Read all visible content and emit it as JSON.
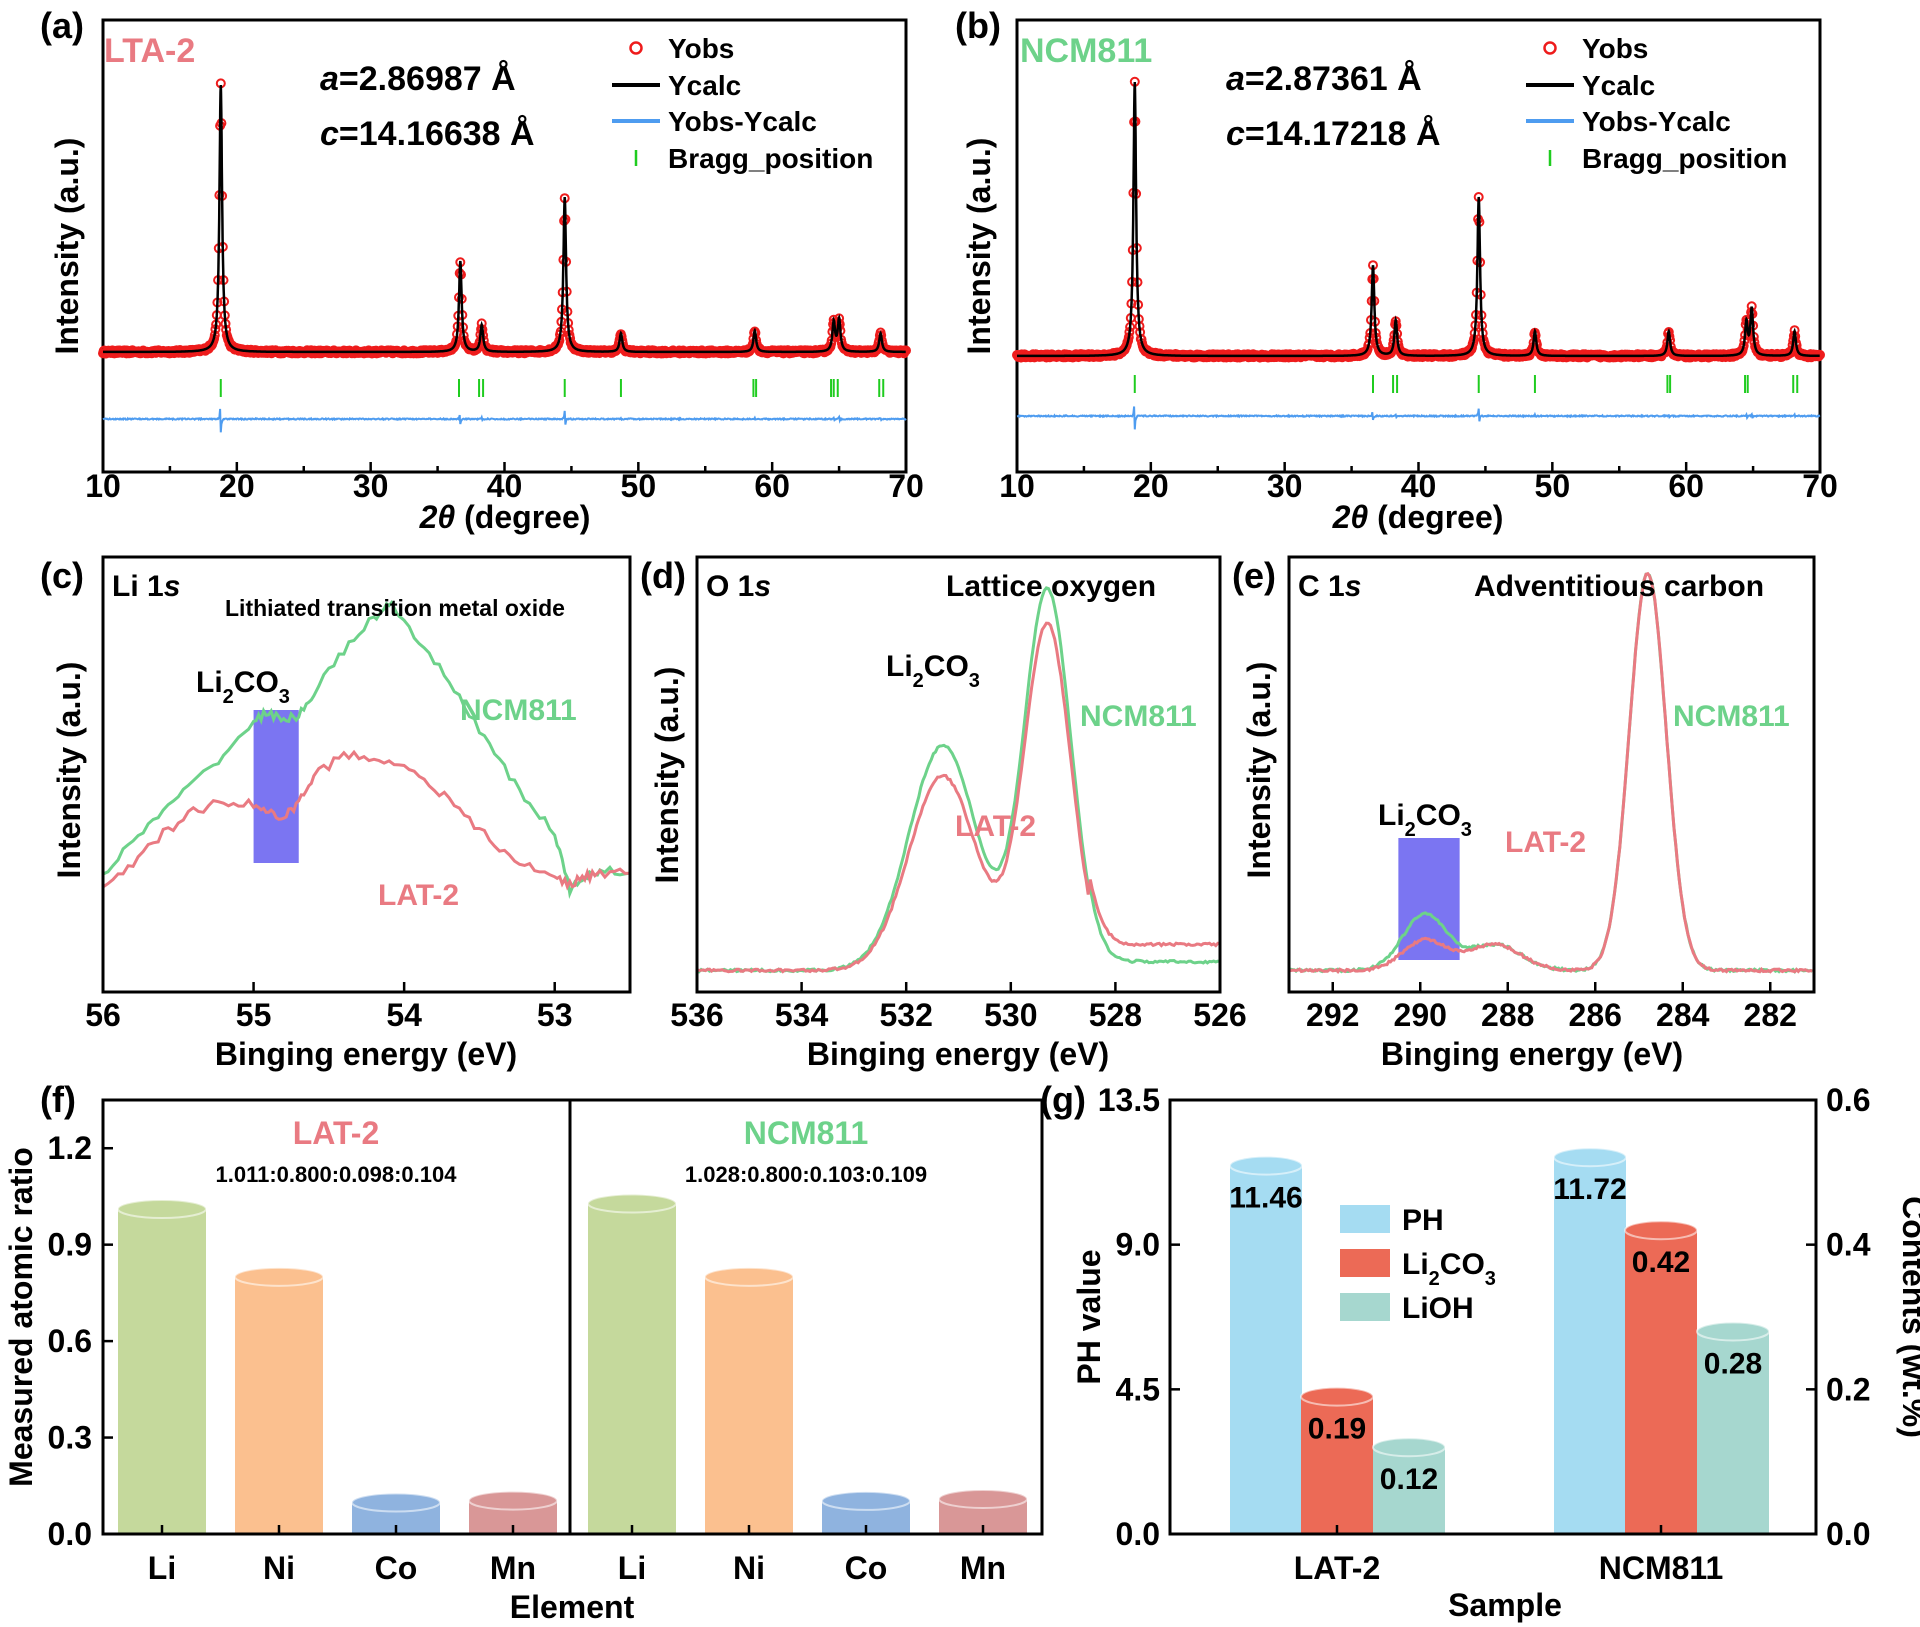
{
  "colors": {
    "yobs": "#ee1c1c",
    "ycalc": "#000000",
    "diff": "#4e9cf0",
    "bragg": "#1fcc1f",
    "ncm": "#6dd28a",
    "lat": "#e97a82",
    "li2co3_band": "#7b75f2",
    "Li": "#c5d99c",
    "Ni": "#fbc08f",
    "Co": "#8fb3df",
    "Mn": "#d99797",
    "PH": "#a5dcf2",
    "Li2CO3": "#ec6a56",
    "LiOH": "#a6d7cf"
  },
  "panels": {
    "a": {
      "label": "(a)",
      "sample": "LTA-2",
      "lattice_a_var": "a",
      "lattice_a_val": "=2.86987 Å",
      "lattice_c_var": "c",
      "lattice_c_val": "=14.16638 Å",
      "legend": [
        "Yobs",
        "Ycalc",
        "Yobs-Ycalc",
        "Bragg_position"
      ],
      "ylabel": "Intensity (a.u.)",
      "xlabel_italic": "2θ",
      "xlabel_rest": " (degree)"
    },
    "b": {
      "label": "(b)",
      "sample": "NCM811",
      "lattice_a_var": "a",
      "lattice_a_val": "=2.87361 Å",
      "lattice_c_var": "c",
      "lattice_c_val": "=14.17218 Å",
      "legend": [
        "Yobs",
        "Ycalc",
        "Yobs-Ycalc",
        "Bragg_position"
      ],
      "ylabel": "Intensity (a.u.)",
      "xlabel_italic": "2θ",
      "xlabel_rest": " (degree)"
    },
    "c": {
      "label": "(c)",
      "title_main": "Li 1",
      "title_italic": "s",
      "note": "Lithiated transition metal oxide",
      "band_label": "Li2CO3",
      "series_labels": [
        "NCM811",
        "LAT-2"
      ],
      "ylabel": "Intensity (a.u.)",
      "xlabel": "Binging energy (eV)"
    },
    "d": {
      "label": "(d)",
      "title_main": "O 1",
      "title_italic": "s",
      "note": "Lattice oxygen",
      "peak_label": "Li2CO3",
      "series_labels": [
        "NCM811",
        "LAT-2"
      ],
      "ylabel": "Intensity (a.u.)",
      "xlabel": "Binging energy (eV)"
    },
    "e": {
      "label": "(e)",
      "title_main": "C 1",
      "title_italic": "s",
      "note": "Adventitious carbon",
      "band_label": "Li2CO3",
      "series_labels": [
        "NCM811",
        "LAT-2"
      ],
      "ylabel": "Intensity (a.u.)",
      "xlabel": "Binging energy (eV)"
    },
    "f": {
      "label": "(f)",
      "ylabel": "Measured atomic ratio",
      "xlabel": "Element",
      "groups": [
        {
          "name": "LAT-2",
          "ratio_text": "1.011:0.800:0.098:0.104"
        },
        {
          "name": "NCM811",
          "ratio_text": "1.028:0.800:0.103:0.109"
        }
      ]
    },
    "g": {
      "label": "(g)",
      "ylabel_left": "PH value",
      "ylabel_right": "Contents (wt.%)",
      "xlabel": "Sample",
      "legend": [
        "PH",
        "Li2CO3",
        "LiOH"
      ]
    }
  },
  "chart_data": [
    {
      "type": "line",
      "panel": "a",
      "xlim": [
        10,
        70
      ],
      "xticks": [
        10,
        20,
        30,
        40,
        50,
        60,
        70
      ],
      "peaks": [
        {
          "x": 18.8,
          "height": 1.0
        },
        {
          "x": 36.7,
          "height": 0.34
        },
        {
          "x": 38.3,
          "height": 0.1
        },
        {
          "x": 44.5,
          "height": 0.58
        },
        {
          "x": 48.7,
          "height": 0.07
        },
        {
          "x": 58.7,
          "height": 0.08
        },
        {
          "x": 64.6,
          "height": 0.11
        },
        {
          "x": 65.0,
          "height": 0.12
        },
        {
          "x": 68.1,
          "height": 0.07
        }
      ],
      "bragg_positions": [
        18.8,
        36.6,
        38.1,
        38.4,
        44.5,
        48.7,
        58.6,
        58.8,
        64.4,
        64.6,
        64.9,
        68.0,
        68.3
      ]
    },
    {
      "type": "line",
      "panel": "b",
      "xlim": [
        10,
        70
      ],
      "xticks": [
        10,
        20,
        30,
        40,
        50,
        60,
        70
      ],
      "peaks": [
        {
          "x": 18.8,
          "height": 1.0
        },
        {
          "x": 36.6,
          "height": 0.33
        },
        {
          "x": 38.3,
          "height": 0.13
        },
        {
          "x": 44.5,
          "height": 0.58
        },
        {
          "x": 48.7,
          "height": 0.09
        },
        {
          "x": 58.7,
          "height": 0.09
        },
        {
          "x": 64.5,
          "height": 0.12
        },
        {
          "x": 64.9,
          "height": 0.17
        },
        {
          "x": 68.1,
          "height": 0.09
        }
      ],
      "bragg_positions": [
        18.8,
        36.6,
        38.1,
        38.4,
        44.5,
        48.7,
        58.6,
        58.8,
        64.4,
        64.6,
        68.0,
        68.3
      ]
    },
    {
      "type": "line",
      "panel": "c",
      "xlim": [
        56,
        52.5
      ],
      "xticks": [
        56,
        55,
        54,
        53
      ],
      "band": [
        55.0,
        54.7
      ],
      "series": [
        {
          "name": "NCM811",
          "x": [
            56,
            55.8,
            55.6,
            55.4,
            55.2,
            55.0,
            54.9,
            54.8,
            54.7,
            54.6,
            54.4,
            54.2,
            54.1,
            54.0,
            53.8,
            53.6,
            53.4,
            53.2,
            53.0,
            52.9,
            52.8,
            52.7,
            52.5
          ],
          "y": [
            0.12,
            0.22,
            0.3,
            0.38,
            0.46,
            0.55,
            0.58,
            0.55,
            0.57,
            0.63,
            0.75,
            0.84,
            0.88,
            0.82,
            0.72,
            0.6,
            0.46,
            0.34,
            0.24,
            0.08,
            0.12,
            0.14,
            0.13
          ]
        },
        {
          "name": "LAT-2",
          "x": [
            56,
            55.8,
            55.6,
            55.4,
            55.2,
            55.0,
            54.9,
            54.8,
            54.7,
            54.6,
            54.4,
            54.2,
            54.0,
            53.8,
            53.6,
            53.4,
            53.2,
            53.0,
            52.9,
            52.8,
            52.7,
            52.5
          ],
          "y": [
            0.08,
            0.16,
            0.24,
            0.3,
            0.33,
            0.32,
            0.3,
            0.28,
            0.33,
            0.4,
            0.46,
            0.45,
            0.43,
            0.37,
            0.29,
            0.21,
            0.15,
            0.12,
            0.1,
            0.12,
            0.13,
            0.13
          ]
        }
      ]
    },
    {
      "type": "line",
      "panel": "d",
      "xlim": [
        536,
        526
      ],
      "xticks": [
        536,
        534,
        532,
        530,
        528,
        526
      ],
      "series": [
        {
          "name": "NCM811",
          "baseline": 0.05,
          "peaks": [
            {
              "x": 531.3,
              "height": 0.52,
              "width": 0.65
            },
            {
              "x": 529.3,
              "height": 0.88,
              "width": 0.45
            }
          ],
          "tail": 0.02
        },
        {
          "name": "LAT-2",
          "baseline": 0.05,
          "peaks": [
            {
              "x": 531.3,
              "height": 0.45,
              "width": 0.65
            },
            {
              "x": 529.3,
              "height": 0.8,
              "width": 0.45
            }
          ],
          "tail": 0.06
        }
      ]
    },
    {
      "type": "line",
      "panel": "e",
      "xlim": [
        293,
        281
      ],
      "xticks": [
        292,
        290,
        288,
        286,
        284,
        282
      ],
      "band": [
        290.5,
        289.1
      ],
      "series": [
        {
          "name": "NCM811",
          "baseline": 0.05,
          "peaks": [
            {
              "x": 284.8,
              "height": 0.92,
              "width": 0.42
            },
            {
              "x": 289.9,
              "height": 0.13,
              "width": 0.5
            },
            {
              "x": 288.3,
              "height": 0.06,
              "width": 0.6
            }
          ]
        },
        {
          "name": "LAT-2",
          "baseline": 0.05,
          "peaks": [
            {
              "x": 284.8,
              "height": 0.92,
              "width": 0.42
            },
            {
              "x": 289.9,
              "height": 0.07,
              "width": 0.5
            },
            {
              "x": 288.3,
              "height": 0.06,
              "width": 0.6
            }
          ]
        }
      ]
    },
    {
      "type": "bar",
      "panel": "f",
      "ylim": [
        0,
        1.35
      ],
      "yticks": [
        0.0,
        0.3,
        0.6,
        0.9,
        1.2
      ],
      "categories": [
        "Li",
        "Ni",
        "Co",
        "Mn"
      ],
      "series": [
        {
          "name": "LAT-2",
          "values": [
            1.011,
            0.8,
            0.098,
            0.104
          ]
        },
        {
          "name": "NCM811",
          "values": [
            1.028,
            0.8,
            0.103,
            0.109
          ]
        }
      ]
    },
    {
      "type": "bar",
      "panel": "g",
      "categories": [
        "LAT-2",
        "NCM811"
      ],
      "ylim_left": [
        0,
        13.5
      ],
      "yticks_left": [
        0.0,
        4.5,
        9.0,
        13.5
      ],
      "ylim_right": [
        0,
        0.6
      ],
      "yticks_right": [
        0.0,
        0.2,
        0.4,
        0.6
      ],
      "series": [
        {
          "name": "PH",
          "axis": "left",
          "values": [
            11.46,
            11.72
          ],
          "labels": [
            "11.46",
            "11.72"
          ]
        },
        {
          "name": "Li2CO3",
          "axis": "right",
          "values": [
            0.19,
            0.42
          ],
          "labels": [
            "0.19",
            "0.42"
          ]
        },
        {
          "name": "LiOH",
          "axis": "right",
          "values": [
            0.12,
            0.28
          ],
          "labels": [
            "0.12",
            "0.28"
          ]
        }
      ]
    }
  ]
}
